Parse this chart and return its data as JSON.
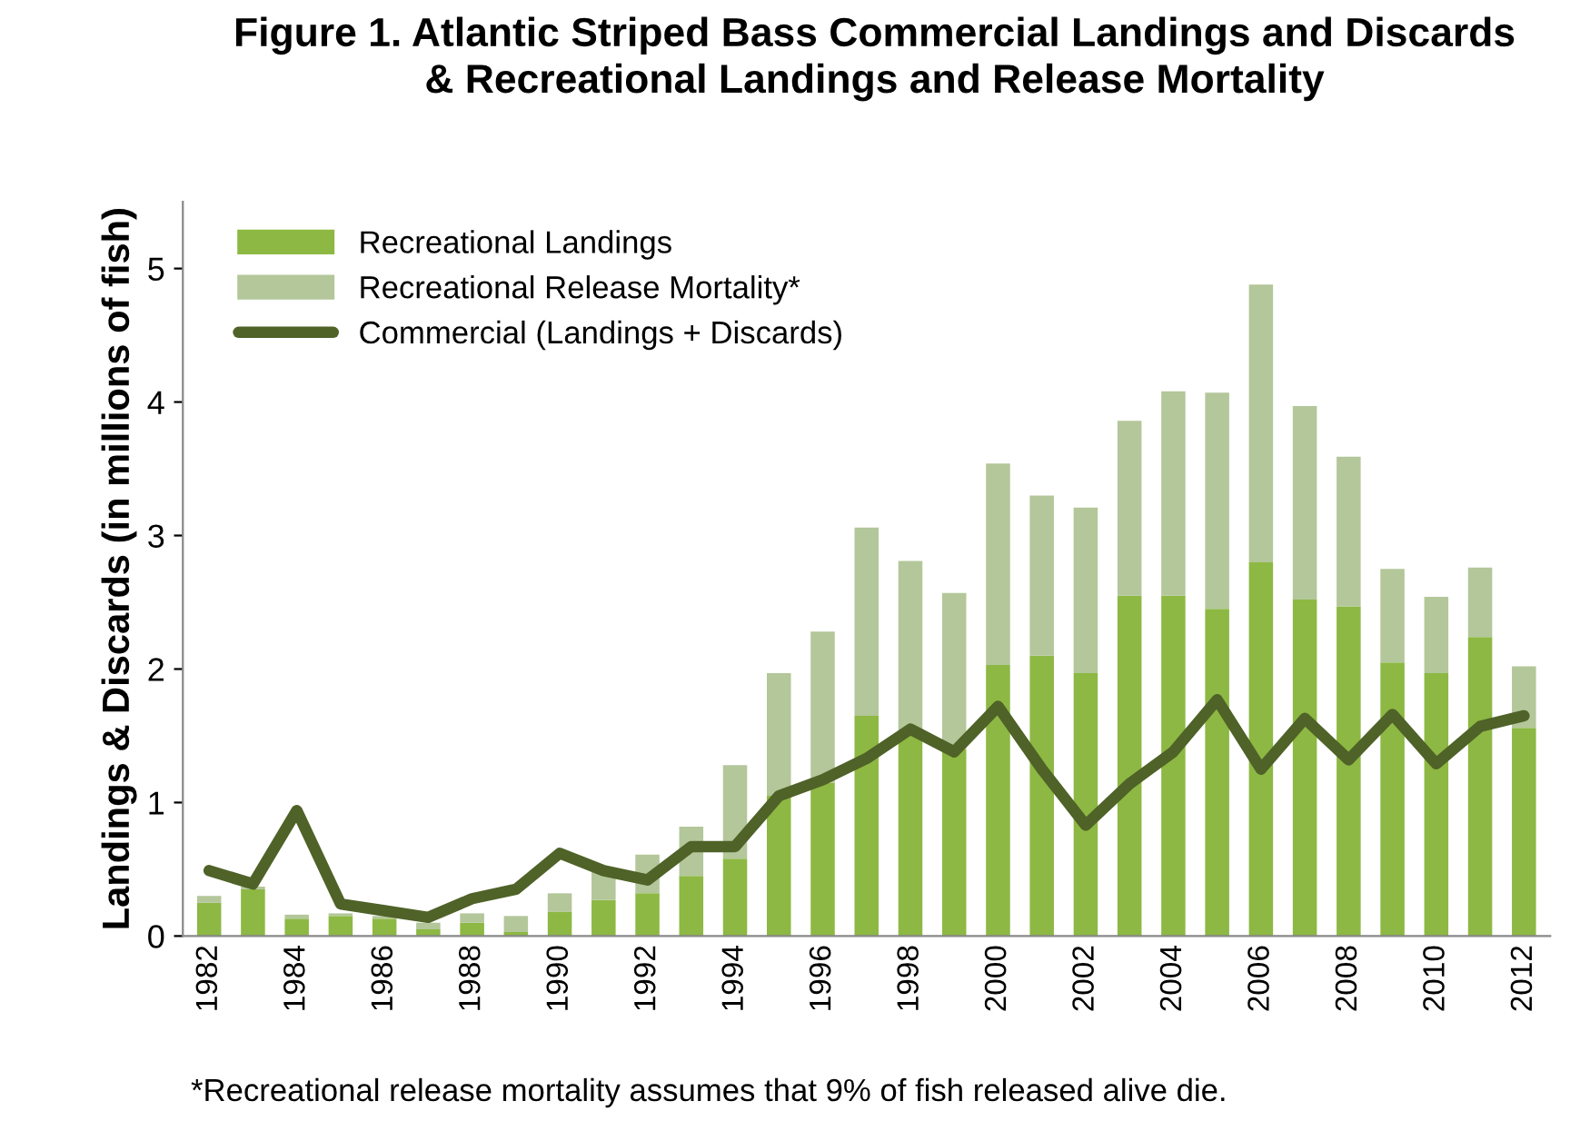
{
  "chart_data": {
    "type": "bar",
    "stacked": true,
    "title": "Figure 1. Atlantic Striped Bass Commercial Landings and Discards\n& Recreational Landings and Release Mortality",
    "ylabel": "Landings & Discards (in millions of fish)",
    "categories": [
      "1982",
      null,
      "1984",
      null,
      "1986",
      null,
      "1988",
      null,
      "1990",
      null,
      "1992",
      null,
      "1994",
      null,
      "1996",
      null,
      "1998",
      null,
      "2000",
      null,
      "2002",
      null,
      "2004",
      null,
      "2006",
      null,
      "2008",
      null,
      "2010",
      null,
      "2012"
    ],
    "series": [
      {
        "name": "Recreational Landings",
        "color": "#8db843",
        "values": [
          0.25,
          0.35,
          0.13,
          0.15,
          0.13,
          0.05,
          0.1,
          0.03,
          0.18,
          0.27,
          0.32,
          0.45,
          0.58,
          1.05,
          1.15,
          1.65,
          1.5,
          1.4,
          2.03,
          2.1,
          1.97,
          2.55,
          2.55,
          2.45,
          2.8,
          2.52,
          2.47,
          2.05,
          1.97,
          2.24,
          1.56
        ]
      },
      {
        "name": "Recreational Release Mortality*",
        "color": "#b3c79a",
        "values": [
          0.05,
          0.02,
          0.03,
          0.02,
          0.02,
          0.05,
          0.07,
          0.12,
          0.14,
          0.22,
          0.29,
          0.37,
          0.7,
          0.92,
          1.13,
          1.41,
          1.31,
          1.17,
          1.51,
          1.2,
          1.24,
          1.31,
          1.53,
          1.62,
          2.08,
          1.45,
          1.12,
          0.7,
          0.57,
          0.52,
          0.46
        ]
      },
      {
        "name": "Commercial (Landings + Discards)",
        "type": "line",
        "color": "#4f6228",
        "values": [
          0.49,
          0.39,
          0.94,
          0.24,
          0.19,
          0.14,
          0.28,
          0.35,
          0.62,
          0.49,
          0.42,
          0.67,
          0.67,
          1.05,
          1.17,
          1.33,
          1.55,
          1.38,
          1.72,
          1.25,
          0.83,
          1.14,
          1.38,
          1.77,
          1.25,
          1.63,
          1.32,
          1.66,
          1.29,
          1.57,
          1.65
        ]
      }
    ],
    "ylim": [
      0,
      5.5
    ],
    "yticks": [
      0,
      1,
      2,
      3,
      4,
      5
    ],
    "legend": "top left",
    "grid": false,
    "line_style": "solid",
    "marker": "none",
    "annotations": [
      "*Recreational release mortality assumes that 9% of fish released alive die."
    ]
  }
}
